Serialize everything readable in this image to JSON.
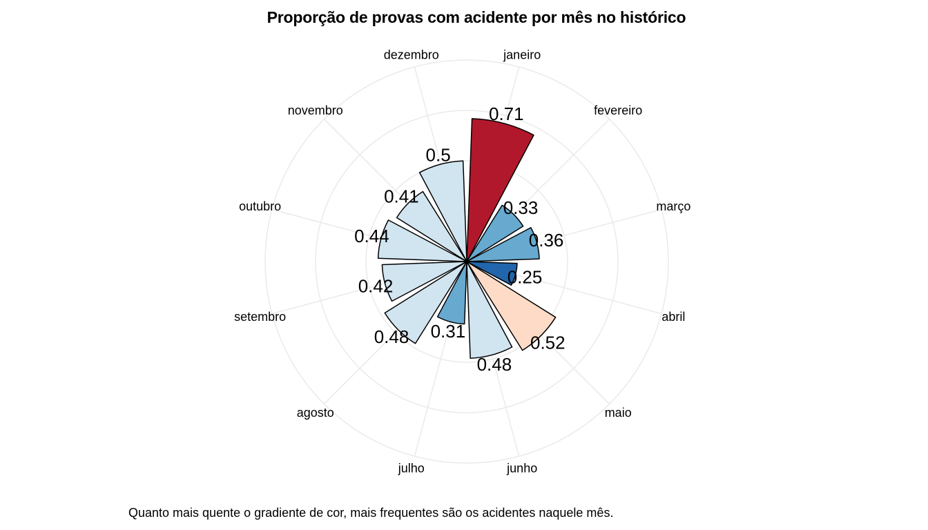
{
  "chart_data": {
    "type": "polar-bar",
    "title": "Proporção de provas com acidente por mês no histórico",
    "caption": "Quanto mais quente o gradiente de cor, mais frequentes são os acidentes naquele mês.",
    "categories": [
      "janeiro",
      "fevereiro",
      "março",
      "abril",
      "maio",
      "junho",
      "julho",
      "agosto",
      "setembro",
      "outubro",
      "novembro",
      "dezembro"
    ],
    "values": [
      0.71,
      0.33,
      0.36,
      0.25,
      0.52,
      0.48,
      0.31,
      0.48,
      0.42,
      0.44,
      0.41,
      0.5
    ],
    "value_labels": [
      "0.71",
      "0.33",
      "0.36",
      "0.25",
      "0.52",
      "0.48",
      "0.31",
      "0.48",
      "0.42",
      "0.44",
      "0.41",
      "0.5"
    ],
    "colors": [
      "#b2182b",
      "#67a9cf",
      "#67a9cf",
      "#2166ac",
      "#fddbc7",
      "#d1e5f0",
      "#67a9cf",
      "#d1e5f0",
      "#d1e5f0",
      "#d1e5f0",
      "#d1e5f0",
      "#d1e5f0"
    ],
    "rlim": [
      0,
      1
    ],
    "grid": true,
    "legend": "none"
  }
}
